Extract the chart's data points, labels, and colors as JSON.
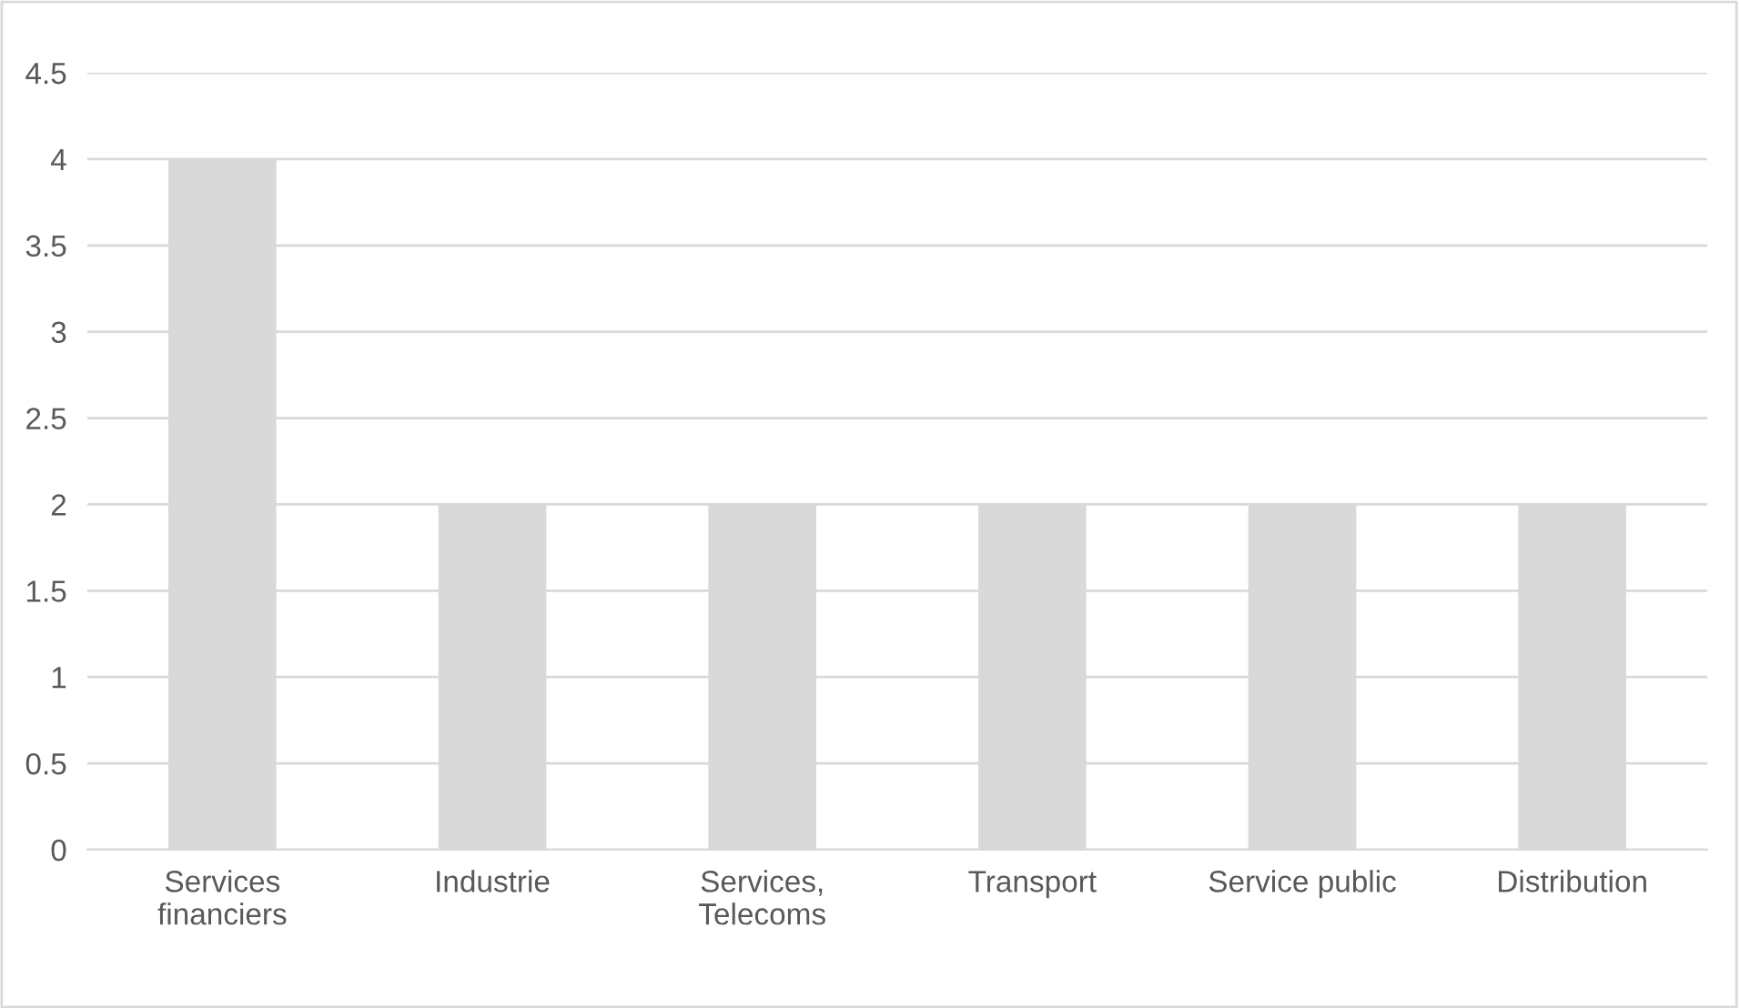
{
  "chart_data": {
    "type": "bar",
    "categories": [
      "Services\nfinanciers",
      "Industrie",
      "Services,\nTelecoms",
      "Transport",
      "Service public",
      "Distribution"
    ],
    "values": [
      4,
      2,
      2,
      2,
      2,
      2
    ],
    "color": "#d9d9d9",
    "ylim": [
      0,
      4.5
    ],
    "yticks": [
      0,
      0.5,
      1,
      1.5,
      2,
      2.5,
      3,
      3.5,
      4,
      4.5
    ],
    "grid": "y"
  }
}
